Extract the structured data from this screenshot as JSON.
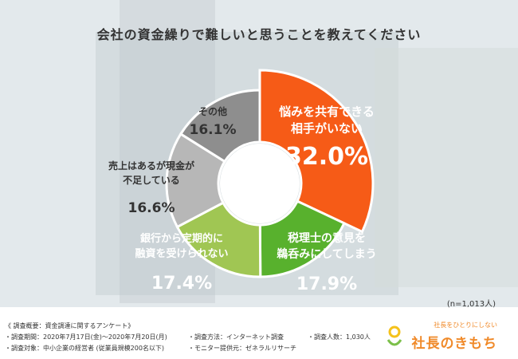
{
  "title": "会社の資金繰りで難しいと思うことを教えてください",
  "sample_size": "(n=1,013人)",
  "chart_data": {
    "type": "pie",
    "title": "会社の資金繰りで難しいと思うことを教えてください",
    "slices": [
      {
        "label_lines": [
          "悩みを共有できる",
          "相手がいない"
        ],
        "value": 32.0,
        "value_text": "32.0%",
        "color": "#f65b17"
      },
      {
        "label_lines": [
          "税理士の意見を",
          "鵜呑みにしてしまう"
        ],
        "value": 17.9,
        "value_text": "17.9%",
        "color": "#58b12d"
      },
      {
        "label_lines": [
          "銀行から定期的に",
          "融資を受けられない"
        ],
        "value": 17.4,
        "value_text": "17.4%",
        "color": "#a0c653"
      },
      {
        "label_lines": [
          "売上はあるが現金が",
          "不足している"
        ],
        "value": 16.6,
        "value_text": "16.6%",
        "color": "#b7b7b7"
      },
      {
        "label_lines": [
          "その他"
        ],
        "value": 16.1,
        "value_text": "16.1%",
        "color": "#8e8e8e"
      }
    ]
  },
  "survey": {
    "heading": "《 調査概要：資金調達に関するアンケート》",
    "period": "・調査期間：2020年7月17日(金)～2020年7月20日(月)",
    "method": "・調査方法：インターネット調査",
    "count": "・調査人数：1,030人",
    "target": "・調査対象：中小企業の経営者 (従業員規模200名以下)",
    "provider": "・モニター提供元：ゼネラルリサーチ"
  },
  "logo": {
    "tagline": "社長をひとりにしない",
    "name": "社長のきもち"
  }
}
